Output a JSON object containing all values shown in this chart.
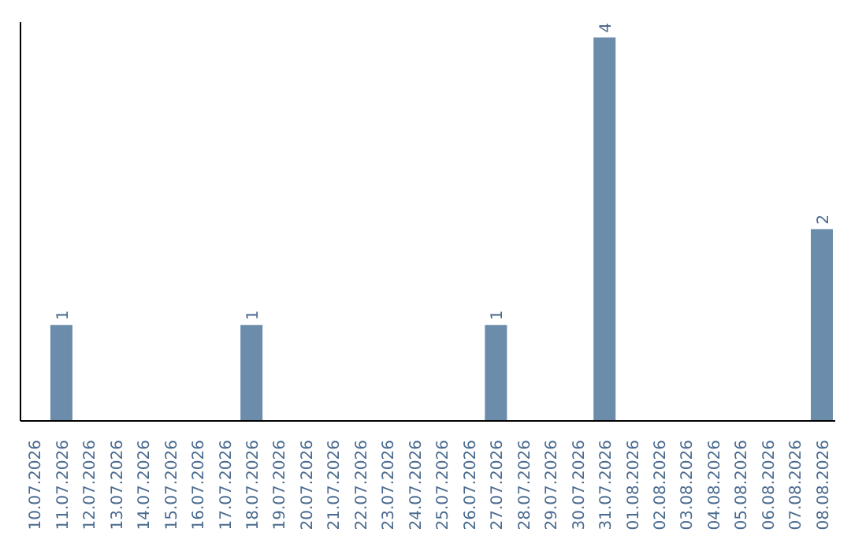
{
  "chart_data": {
    "type": "bar",
    "categories": [
      "10.07.2026",
      "11.07.2026",
      "12.07.2026",
      "13.07.2026",
      "14.07.2026",
      "15.07.2026",
      "16.07.2026",
      "17.07.2026",
      "18.07.2026",
      "19.07.2026",
      "20.07.2026",
      "21.07.2026",
      "22.07.2026",
      "23.07.2026",
      "24.07.2026",
      "25.07.2026",
      "26.07.2026",
      "27.07.2026",
      "28.07.2026",
      "29.07.2026",
      "30.07.2026",
      "31.07.2026",
      "01.08.2026",
      "02.08.2026",
      "03.08.2026",
      "04.08.2026",
      "05.08.2026",
      "06.08.2026",
      "07.08.2026",
      "08.08.2026"
    ],
    "values": [
      0,
      1,
      0,
      0,
      0,
      0,
      0,
      0,
      1,
      0,
      0,
      0,
      0,
      0,
      0,
      0,
      0,
      1,
      0,
      0,
      0,
      4,
      0,
      0,
      0,
      0,
      0,
      0,
      0,
      2
    ],
    "value_labels": [
      null,
      "1",
      null,
      null,
      null,
      null,
      null,
      null,
      "1",
      null,
      null,
      null,
      null,
      null,
      null,
      null,
      null,
      "1",
      null,
      null,
      null,
      "4",
      null,
      null,
      null,
      null,
      null,
      null,
      null,
      "2"
    ],
    "color": "#6b8cab",
    "tick_labels": "x"
  }
}
